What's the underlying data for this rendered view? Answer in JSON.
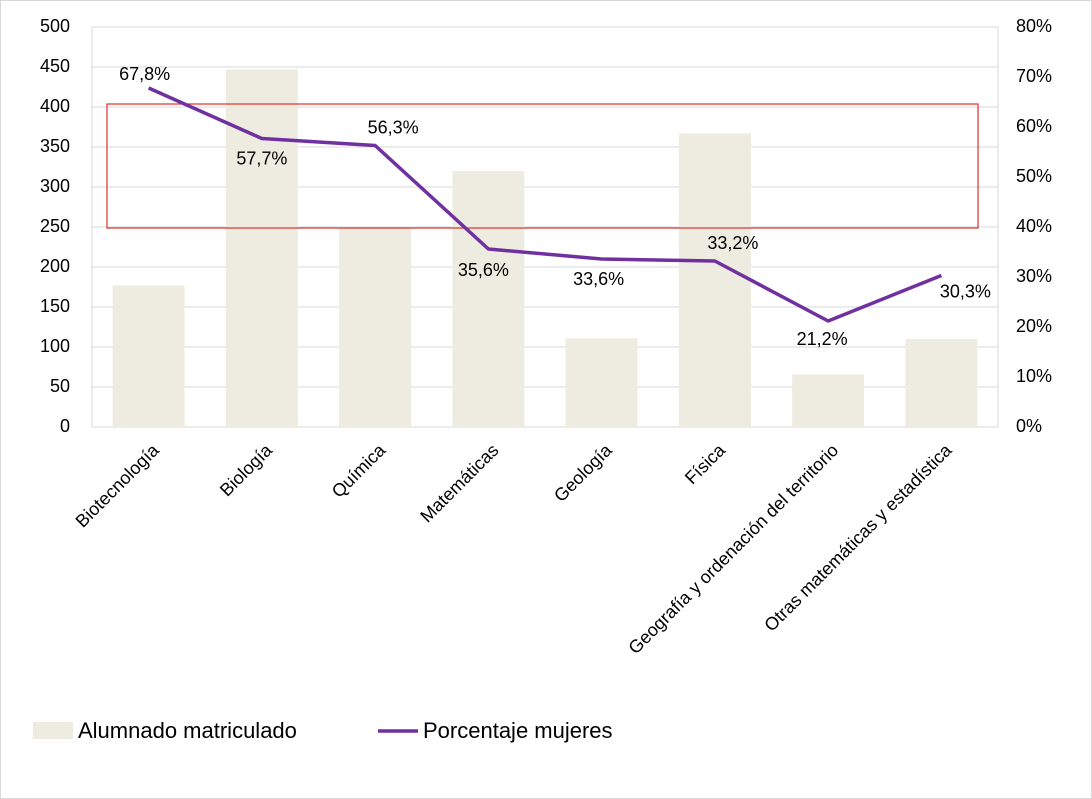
{
  "chart_data": {
    "type": "bar-line",
    "categories": [
      "Biotecnología",
      "Biología",
      "Química",
      "Matemáticas",
      "Geología",
      "Física",
      "Geografía y ordenación del territorio",
      "Otras matemáticas y estadística"
    ],
    "series": [
      {
        "name": "Alumnado matriculado",
        "color": "#eeece1",
        "values": [
          177,
          447,
          249,
          320,
          111,
          367,
          66,
          110
        ]
      },
      {
        "name": "Porcentaje mujeres",
        "color": "#7030a0",
        "axis": "y2",
        "values": [
          67.8,
          57.7,
          56.3,
          35.6,
          33.6,
          33.2,
          21.2,
          30.3
        ],
        "value_labels": [
          "67,8%",
          "57,7%",
          "56,3%",
          "35,6%",
          "33,6%",
          "33,2%",
          "21,2%",
          "30,3%"
        ]
      }
    ],
    "ylim": [
      0,
      500
    ],
    "yticks": [
      0,
      50,
      100,
      150,
      200,
      250,
      300,
      350,
      400,
      450,
      500
    ],
    "y2lim": [
      0,
      80
    ],
    "y2ticks": [
      {
        "value": 0,
        "label": "0%"
      },
      {
        "value": 10,
        "label": "10%"
      },
      {
        "value": 20,
        "label": "20%"
      },
      {
        "value": 30,
        "label": "30%"
      },
      {
        "value": 40,
        "label": "40%"
      },
      {
        "value": 50,
        "label": "50%"
      },
      {
        "value": 60,
        "label": "60%"
      },
      {
        "value": 70,
        "label": "70%"
      },
      {
        "value": 80,
        "label": "80%"
      }
    ],
    "grid": true,
    "legend": "bottom"
  }
}
